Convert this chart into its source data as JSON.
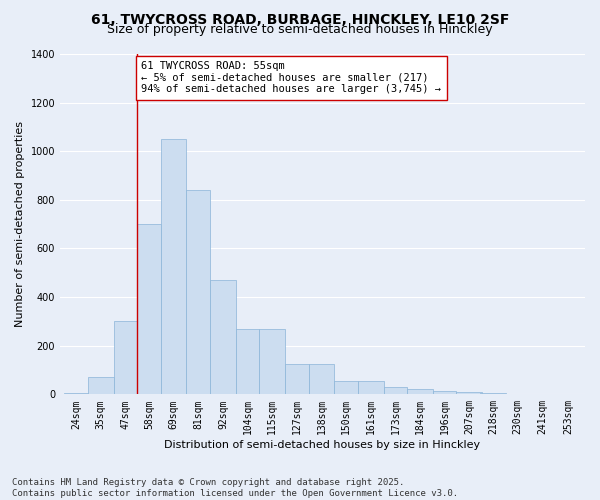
{
  "title_line1": "61, TWYCROSS ROAD, BURBAGE, HINCKLEY, LE10 2SF",
  "title_line2": "Size of property relative to semi-detached houses in Hinckley",
  "xlabel": "Distribution of semi-detached houses by size in Hinckley",
  "ylabel": "Number of semi-detached properties",
  "bar_color": "#ccddf0",
  "bar_edge_color": "#8ab4d8",
  "background_color": "#e8eef8",
  "grid_color": "#ffffff",
  "annotation_text": "61 TWYCROSS ROAD: 55sqm\n← 5% of semi-detached houses are smaller (217)\n94% of semi-detached houses are larger (3,745) →",
  "vline_x": 58,
  "vline_color": "#cc0000",
  "annotation_box_color": "#ffffff",
  "annotation_box_edge_color": "#cc0000",
  "categories": [
    "24sqm",
    "35sqm",
    "47sqm",
    "58sqm",
    "69sqm",
    "81sqm",
    "92sqm",
    "104sqm",
    "115sqm",
    "127sqm",
    "138sqm",
    "150sqm",
    "161sqm",
    "173sqm",
    "184sqm",
    "196sqm",
    "207sqm",
    "218sqm",
    "230sqm",
    "241sqm",
    "253sqm"
  ],
  "bar_lefts": [
    24,
    35,
    47,
    58,
    69,
    81,
    92,
    104,
    115,
    127,
    138,
    150,
    161,
    173,
    184,
    196,
    207,
    218,
    230,
    241,
    253
  ],
  "bar_heights": [
    5,
    70,
    300,
    700,
    1050,
    840,
    470,
    270,
    270,
    125,
    125,
    55,
    55,
    30,
    20,
    15,
    10,
    5,
    3,
    2,
    1
  ],
  "bar_widths": [
    11,
    12,
    11,
    11,
    12,
    11,
    12,
    11,
    12,
    11,
    12,
    11,
    12,
    11,
    12,
    11,
    12,
    12,
    11,
    12,
    12
  ],
  "ylim": [
    0,
    1400
  ],
  "yticks": [
    0,
    200,
    400,
    600,
    800,
    1000,
    1200,
    1400
  ],
  "footer_text": "Contains HM Land Registry data © Crown copyright and database right 2025.\nContains public sector information licensed under the Open Government Licence v3.0.",
  "title_fontsize": 10,
  "subtitle_fontsize": 9,
  "axis_label_fontsize": 8,
  "tick_fontsize": 7,
  "annotation_fontsize": 7.5,
  "footer_fontsize": 6.5
}
